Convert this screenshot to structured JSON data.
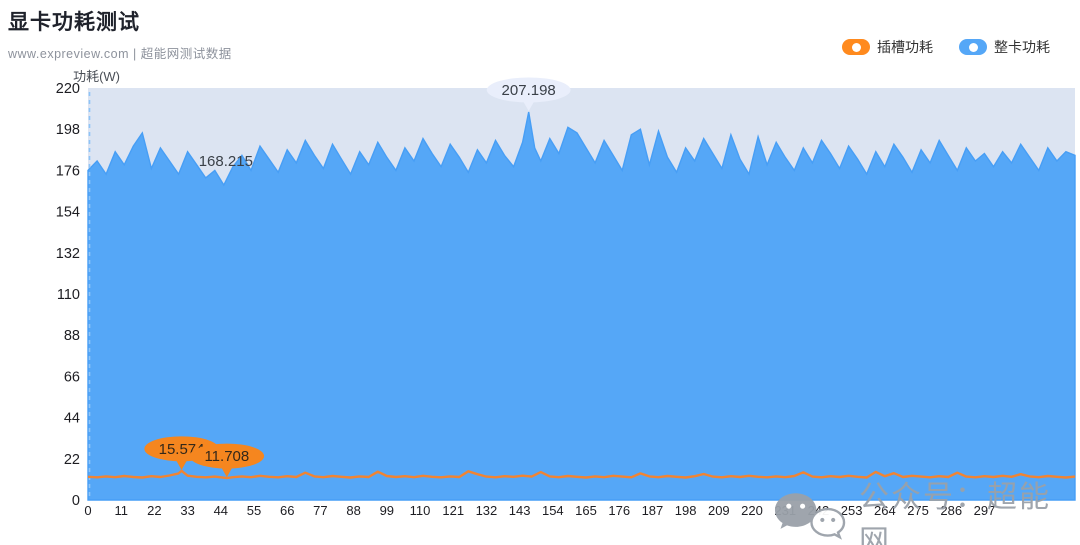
{
  "header": {
    "title": "显卡功耗测试",
    "subtitle": "www.expreview.com | 超能网测试数据"
  },
  "legend": [
    {
      "label": "插槽功耗",
      "color": "#ff8a1e"
    },
    {
      "label": "整卡功耗",
      "color": "#55a7f7"
    }
  ],
  "watermark": {
    "text": "公众号：超能网"
  },
  "colors": {
    "blue_area": "#55a7f7",
    "blue_edge": "#479ef5",
    "orange_line": "#f08433",
    "band": "#dce4f2",
    "pin_light": "#e9eefb",
    "pin_orange": "#f5861f",
    "axis_text": "#1d1d22"
  },
  "chart_data": {
    "type": "line",
    "title": "显卡功耗测试",
    "xlabel": "",
    "ylabel": "功耗(W)",
    "ylim": [
      0,
      220
    ],
    "xlim": [
      0,
      327
    ],
    "y_ticks": [
      0,
      22,
      44,
      66,
      88,
      110,
      132,
      154,
      176,
      198,
      220
    ],
    "x_tick_labels": [
      0,
      11,
      22,
      33,
      44,
      55,
      66,
      77,
      88,
      99,
      110,
      121,
      132,
      143,
      154,
      165,
      176,
      187,
      198,
      209,
      220,
      231,
      242,
      253,
      264,
      275,
      286,
      297
    ],
    "grid": false,
    "legend_position": "top-right",
    "series": [
      {
        "name": "整卡功耗",
        "color": "#55a7f7",
        "style": "area",
        "max": 207.198,
        "min": 168.215,
        "points": [
          [
            0,
            176
          ],
          [
            3,
            181
          ],
          [
            6,
            174
          ],
          [
            9,
            186
          ],
          [
            12,
            179
          ],
          [
            15,
            189
          ],
          [
            18,
            196
          ],
          [
            21,
            177
          ],
          [
            24,
            188
          ],
          [
            27,
            181
          ],
          [
            30,
            174
          ],
          [
            33,
            186
          ],
          [
            36,
            179
          ],
          [
            39,
            172
          ],
          [
            42,
            176
          ],
          [
            45,
            168.215
          ],
          [
            48,
            178
          ],
          [
            51,
            184
          ],
          [
            54,
            176
          ],
          [
            57,
            189
          ],
          [
            60,
            182
          ],
          [
            63,
            175
          ],
          [
            66,
            187
          ],
          [
            69,
            180
          ],
          [
            72,
            192
          ],
          [
            75,
            184
          ],
          [
            78,
            177
          ],
          [
            81,
            190
          ],
          [
            84,
            182
          ],
          [
            87,
            174
          ],
          [
            90,
            186
          ],
          [
            93,
            179
          ],
          [
            96,
            191
          ],
          [
            99,
            183
          ],
          [
            102,
            176
          ],
          [
            105,
            188
          ],
          [
            108,
            181
          ],
          [
            111,
            193
          ],
          [
            114,
            185
          ],
          [
            117,
            178
          ],
          [
            120,
            190
          ],
          [
            123,
            183
          ],
          [
            126,
            175
          ],
          [
            129,
            187
          ],
          [
            132,
            180
          ],
          [
            135,
            192
          ],
          [
            138,
            184
          ],
          [
            141,
            178
          ],
          [
            144,
            191
          ],
          [
            146,
            207.198
          ],
          [
            148,
            188
          ],
          [
            150,
            181
          ],
          [
            153,
            193
          ],
          [
            156,
            185
          ],
          [
            159,
            199
          ],
          [
            162,
            196
          ],
          [
            165,
            188
          ],
          [
            168,
            180
          ],
          [
            171,
            192
          ],
          [
            174,
            184
          ],
          [
            177,
            176
          ],
          [
            180,
            195
          ],
          [
            183,
            198
          ],
          [
            186,
            179
          ],
          [
            189,
            197
          ],
          [
            192,
            183
          ],
          [
            195,
            175
          ],
          [
            198,
            188
          ],
          [
            201,
            181
          ],
          [
            204,
            193
          ],
          [
            207,
            185
          ],
          [
            210,
            177
          ],
          [
            213,
            195
          ],
          [
            216,
            182
          ],
          [
            219,
            174
          ],
          [
            222,
            194
          ],
          [
            225,
            179
          ],
          [
            228,
            191
          ],
          [
            231,
            183
          ],
          [
            234,
            176
          ],
          [
            237,
            188
          ],
          [
            240,
            180
          ],
          [
            243,
            192
          ],
          [
            246,
            185
          ],
          [
            249,
            177
          ],
          [
            252,
            189
          ],
          [
            255,
            182
          ],
          [
            258,
            174
          ],
          [
            261,
            186
          ],
          [
            264,
            178
          ],
          [
            267,
            190
          ],
          [
            270,
            183
          ],
          [
            273,
            175
          ],
          [
            276,
            187
          ],
          [
            279,
            180
          ],
          [
            282,
            192
          ],
          [
            285,
            184
          ],
          [
            288,
            176
          ],
          [
            291,
            188
          ],
          [
            294,
            181
          ],
          [
            297,
            185
          ],
          [
            300,
            178
          ],
          [
            303,
            186
          ],
          [
            306,
            180
          ],
          [
            309,
            190
          ],
          [
            312,
            183
          ],
          [
            315,
            176
          ],
          [
            318,
            188
          ],
          [
            321,
            181
          ],
          [
            324,
            186
          ],
          [
            327,
            184
          ]
        ]
      },
      {
        "name": "插槽功耗",
        "color": "#f08433",
        "style": "line",
        "max": 15.574,
        "min": 11.708,
        "points": [
          [
            0,
            12.4
          ],
          [
            3,
            12.1
          ],
          [
            6,
            12.6
          ],
          [
            9,
            12.2
          ],
          [
            12,
            12.8
          ],
          [
            15,
            12.3
          ],
          [
            18,
            12.0
          ],
          [
            21,
            12.7
          ],
          [
            24,
            12.3
          ],
          [
            27,
            13.1
          ],
          [
            30,
            14.2
          ],
          [
            31,
            15.574
          ],
          [
            33,
            13.0
          ],
          [
            36,
            12.4
          ],
          [
            39,
            12.1
          ],
          [
            42,
            12.5
          ],
          [
            45,
            11.9
          ],
          [
            46,
            11.708
          ],
          [
            48,
            12.2
          ],
          [
            51,
            12.6
          ],
          [
            54,
            12.2
          ],
          [
            57,
            12.9
          ],
          [
            60,
            12.4
          ],
          [
            63,
            12.1
          ],
          [
            66,
            12.7
          ],
          [
            69,
            12.3
          ],
          [
            72,
            14.6
          ],
          [
            75,
            12.6
          ],
          [
            78,
            12.2
          ],
          [
            81,
            12.8
          ],
          [
            84,
            12.4
          ],
          [
            87,
            12.0
          ],
          [
            90,
            12.6
          ],
          [
            93,
            12.3
          ],
          [
            96,
            15.1
          ],
          [
            99,
            12.8
          ],
          [
            102,
            12.3
          ],
          [
            105,
            12.7
          ],
          [
            108,
            12.2
          ],
          [
            111,
            12.9
          ],
          [
            114,
            12.4
          ],
          [
            117,
            12.1
          ],
          [
            120,
            12.6
          ],
          [
            123,
            12.3
          ],
          [
            126,
            15.3
          ],
          [
            129,
            13.8
          ],
          [
            132,
            12.5
          ],
          [
            135,
            12.1
          ],
          [
            138,
            12.7
          ],
          [
            141,
            12.4
          ],
          [
            144,
            13.0
          ],
          [
            147,
            12.5
          ],
          [
            150,
            14.9
          ],
          [
            153,
            12.6
          ],
          [
            156,
            12.2
          ],
          [
            159,
            12.8
          ],
          [
            162,
            12.4
          ],
          [
            165,
            12.0
          ],
          [
            168,
            12.6
          ],
          [
            171,
            12.2
          ],
          [
            174,
            12.9
          ],
          [
            177,
            12.5
          ],
          [
            180,
            12.1
          ],
          [
            183,
            14.2
          ],
          [
            186,
            12.6
          ],
          [
            189,
            12.2
          ],
          [
            192,
            12.8
          ],
          [
            195,
            12.4
          ],
          [
            198,
            12.0
          ],
          [
            201,
            12.7
          ],
          [
            204,
            13.9
          ],
          [
            207,
            12.5
          ],
          [
            210,
            12.1
          ],
          [
            213,
            12.7
          ],
          [
            216,
            12.3
          ],
          [
            219,
            12.9
          ],
          [
            222,
            12.4
          ],
          [
            225,
            12.1
          ],
          [
            228,
            12.6
          ],
          [
            231,
            12.2
          ],
          [
            234,
            12.8
          ],
          [
            237,
            14.8
          ],
          [
            240,
            12.5
          ],
          [
            243,
            12.1
          ],
          [
            246,
            12.7
          ],
          [
            249,
            12.3
          ],
          [
            252,
            12.9
          ],
          [
            255,
            12.4
          ],
          [
            258,
            12.0
          ],
          [
            261,
            15.0
          ],
          [
            264,
            12.7
          ],
          [
            267,
            14.3
          ],
          [
            270,
            12.3
          ],
          [
            273,
            12.9
          ],
          [
            276,
            12.5
          ],
          [
            279,
            12.1
          ],
          [
            282,
            12.7
          ],
          [
            285,
            12.3
          ],
          [
            288,
            14.6
          ],
          [
            291,
            12.5
          ],
          [
            294,
            12.1
          ],
          [
            297,
            12.7
          ],
          [
            300,
            12.3
          ],
          [
            303,
            12.9
          ],
          [
            306,
            12.4
          ],
          [
            309,
            13.8
          ],
          [
            312,
            12.6
          ],
          [
            315,
            12.2
          ],
          [
            318,
            12.8
          ],
          [
            321,
            12.4
          ],
          [
            324,
            12.0
          ],
          [
            327,
            12.5
          ]
        ]
      }
    ],
    "annotations": [
      {
        "series": "整卡功耗",
        "kind": "max",
        "x": 146,
        "value": 207.198,
        "label": "207.198"
      },
      {
        "series": "整卡功耗",
        "kind": "min",
        "x": 45,
        "value": 168.215,
        "label": "168.215"
      },
      {
        "series": "插槽功耗",
        "kind": "max",
        "x": 31,
        "value": 15.574,
        "label": "15.574"
      },
      {
        "series": "插槽功耗",
        "kind": "min",
        "x": 46,
        "value": 11.708,
        "label": "11.708"
      }
    ]
  }
}
